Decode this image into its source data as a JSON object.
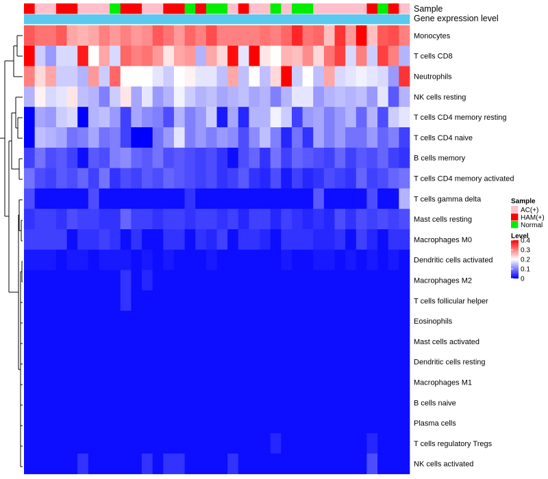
{
  "chart_data": {
    "type": "heatmap",
    "annotation_labels": [
      "Sample",
      "Gene expression level"
    ],
    "gene_expression_color": "#5bc8f0",
    "sample_groups": [
      {
        "name": "AC(+)",
        "color": "#ffc0cb"
      },
      {
        "name": "HAM(+)",
        "color": "#ff0000"
      },
      {
        "name": "Normal",
        "color": "#00ee00"
      }
    ],
    "sample_legend_title": "Sample",
    "level_legend_title": "Level",
    "level_ticks": [
      "0.4",
      "0.3",
      "0.2",
      "0.1",
      "0"
    ],
    "level_tick_values": [
      0.4,
      0.3,
      0.2,
      0.1,
      0
    ],
    "color_scale": {
      "low": "#0000ff",
      "mid": "#ffffff",
      "high": "#ff0000",
      "min": 0,
      "mid_value": 0.2,
      "max": 0.4
    },
    "sample_annotation": [
      "HAM(+)",
      "AC(+)",
      "AC(+)",
      "HAM(+)",
      "HAM(+)",
      "AC(+)",
      "AC(+)",
      "AC(+)",
      "Normal",
      "HAM(+)",
      "HAM(+)",
      "AC(+)",
      "AC(+)",
      "HAM(+)",
      "HAM(+)",
      "Normal",
      "HAM(+)",
      "Normal",
      "Normal",
      "AC(+)",
      "HAM(+)",
      "AC(+)",
      "AC(+)",
      "Normal",
      "AC(+)",
      "Normal",
      "Normal",
      "AC(+)",
      "AC(+)",
      "AC(+)",
      "AC(+)",
      "AC(+)",
      "HAM(+)",
      "Normal",
      "HAM(+)",
      "AC(+)"
    ],
    "rows": [
      "Monocytes",
      "T cells CD8",
      "Neutrophils",
      "NK cells resting",
      "T cells CD4 memory resting",
      "T cells CD4 naive",
      "B cells memory",
      "T cells CD4 memory activated",
      "T cells gamma delta",
      "Mast cells resting",
      "Macrophages M0",
      "Dendritic cells activated",
      "Macrophages M2",
      "T cells follicular helper",
      "Eosinophils",
      "Mast cells activated",
      "Dendritic cells resting",
      "Macrophages M1",
      "B cells naive",
      "Plasma cells",
      "T cells regulatory  Tregs",
      "NK cells activated"
    ],
    "values": [
      [
        0.33,
        0.31,
        0.31,
        0.33,
        0.27,
        0.26,
        0.27,
        0.3,
        0.28,
        0.3,
        0.28,
        0.29,
        0.33,
        0.31,
        0.28,
        0.32,
        0.3,
        0.34,
        0.3,
        0.3,
        0.3,
        0.3,
        0.31,
        0.3,
        0.32,
        0.37,
        0.31,
        0.32,
        0.25,
        0.36,
        0.28,
        0.4,
        0.25,
        0.33,
        0.34,
        0.3
      ],
      [
        0.4,
        0.16,
        0.12,
        0.17,
        0.17,
        0.38,
        0.2,
        0.27,
        0.17,
        0.32,
        0.3,
        0.31,
        0.28,
        0.22,
        0.27,
        0.28,
        0.14,
        0.27,
        0.23,
        0.39,
        0.18,
        0.4,
        0.22,
        0.2,
        0.26,
        0.25,
        0.29,
        0.23,
        0.31,
        0.35,
        0.17,
        0.3,
        0.16,
        0.35,
        0.3,
        0.14
      ],
      [
        0.3,
        0.23,
        0.27,
        0.16,
        0.16,
        0.14,
        0.28,
        0.16,
        0.32,
        0.2,
        0.2,
        0.2,
        0.18,
        0.16,
        0.2,
        0.21,
        0.18,
        0.18,
        0.15,
        0.27,
        0.15,
        0.2,
        0.15,
        0.23,
        0.4,
        0.16,
        0.2,
        0.15,
        0.27,
        0.17,
        0.18,
        0.19,
        0.18,
        0.17,
        0.12,
        0.36
      ],
      [
        0.14,
        0.21,
        0.17,
        0.18,
        0.22,
        0.15,
        0.14,
        0.1,
        0.16,
        0.22,
        0.13,
        0.18,
        0.12,
        0.14,
        0.19,
        0.16,
        0.14,
        0.15,
        0.13,
        0.14,
        0.15,
        0.13,
        0.14,
        0.1,
        0.14,
        0.18,
        0.18,
        0.12,
        0.14,
        0.15,
        0.14,
        0.15,
        0.12,
        0.18,
        0.07,
        0.14
      ],
      [
        0.0,
        0.13,
        0.12,
        0.16,
        0.17,
        0.0,
        0.14,
        0.15,
        0.12,
        0.05,
        0.13,
        0.11,
        0.1,
        0.06,
        0.14,
        0.1,
        0.12,
        0.16,
        0.02,
        0.13,
        0.03,
        0.14,
        0.14,
        0.19,
        0.16,
        0.05,
        0.12,
        0.13,
        0.1,
        0.12,
        0.14,
        0.08,
        0.14,
        0.06,
        0.16,
        0.18
      ],
      [
        0.0,
        0.15,
        0.14,
        0.13,
        0.09,
        0.1,
        0.13,
        0.09,
        0.1,
        0.05,
        0.0,
        0.0,
        0.09,
        0.12,
        0.18,
        0.1,
        0.12,
        0.1,
        0.12,
        0.11,
        0.06,
        0.11,
        0.15,
        0.1,
        0.03,
        0.09,
        0.04,
        0.13,
        0.1,
        0.12,
        0.09,
        0.09,
        0.12,
        0.08,
        0.1,
        0.05
      ],
      [
        0.05,
        0.09,
        0.06,
        0.07,
        0.05,
        0.01,
        0.07,
        0.06,
        0.1,
        0.11,
        0.08,
        0.07,
        0.09,
        0.06,
        0.07,
        0.06,
        0.05,
        0.06,
        0.04,
        0.01,
        0.06,
        0.08,
        0.04,
        0.09,
        0.05,
        0.08,
        0.07,
        0.06,
        0.05,
        0.08,
        0.05,
        0.07,
        0.06,
        0.08,
        0.05,
        0.04
      ],
      [
        0.09,
        0.06,
        0.05,
        0.07,
        0.06,
        0.08,
        0.05,
        0.09,
        0.04,
        0.06,
        0.05,
        0.07,
        0.06,
        0.08,
        0.07,
        0.06,
        0.05,
        0.06,
        0.04,
        0.05,
        0.07,
        0.04,
        0.03,
        0.06,
        0.02,
        0.05,
        0.03,
        0.04,
        0.06,
        0.05,
        0.04,
        0.08,
        0.05,
        0.06,
        0.08,
        0.09
      ],
      [
        0.06,
        0.01,
        0.01,
        0.01,
        0.01,
        0.01,
        0.06,
        0.01,
        0.01,
        0.01,
        0.01,
        0.01,
        0.01,
        0.01,
        0.01,
        0.04,
        0.01,
        0.01,
        0.01,
        0.01,
        0.01,
        0.01,
        0.01,
        0.01,
        0.01,
        0.01,
        0.01,
        0.07,
        0.01,
        0.01,
        0.01,
        0.01,
        0.06,
        0.01,
        0.01,
        0.14
      ],
      [
        0.04,
        0.05,
        0.05,
        0.04,
        0.06,
        0.05,
        0.05,
        0.04,
        0.04,
        0.08,
        0.05,
        0.05,
        0.04,
        0.05,
        0.05,
        0.04,
        0.05,
        0.05,
        0.04,
        0.05,
        0.03,
        0.05,
        0.05,
        0.03,
        0.05,
        0.04,
        0.03,
        0.04,
        0.03,
        0.06,
        0.04,
        0.06,
        0.05,
        0.06,
        0.05,
        0.06
      ],
      [
        0.05,
        0.05,
        0.05,
        0.05,
        0.01,
        0.04,
        0.04,
        0.05,
        0.04,
        0.01,
        0.04,
        0.01,
        0.01,
        0.04,
        0.04,
        0.01,
        0.04,
        0.03,
        0.05,
        0.01,
        0.04,
        0.04,
        0.03,
        0.01,
        0.04,
        0.04,
        0.04,
        0.03,
        0.03,
        0.04,
        0.01,
        0.05,
        0.03,
        0.01,
        0.04,
        0.04
      ],
      [
        0.02,
        0.02,
        0.02,
        0.01,
        0.02,
        0.02,
        0.01,
        0.02,
        0.02,
        0.02,
        0.01,
        0.02,
        0.01,
        0.02,
        0.01,
        0.01,
        0.01,
        0.02,
        0.01,
        0.01,
        0.01,
        0.01,
        0.01,
        0.01,
        0.02,
        0.01,
        0.01,
        0.02,
        0.02,
        0.01,
        0.02,
        0.01,
        0.02,
        0.01,
        0.02,
        0.01
      ],
      [
        0.01,
        0.01,
        0.01,
        0.01,
        0.01,
        0.01,
        0.01,
        0.01,
        0.01,
        0.04,
        0.01,
        0.03,
        0.01,
        0.01,
        0.01,
        0.01,
        0.01,
        0.01,
        0.01,
        0.01,
        0.01,
        0.01,
        0.01,
        0.01,
        0.01,
        0.01,
        0.01,
        0.01,
        0.01,
        0.01,
        0.01,
        0.01,
        0.01,
        0.01,
        0.01,
        0.01
      ],
      [
        0.01,
        0.01,
        0.01,
        0.01,
        0.01,
        0.01,
        0.01,
        0.01,
        0.01,
        0.04,
        0.01,
        0.01,
        0.01,
        0.01,
        0.01,
        0.01,
        0.01,
        0.01,
        0.01,
        0.01,
        0.01,
        0.01,
        0.01,
        0.01,
        0.01,
        0.01,
        0.01,
        0.01,
        0.01,
        0.01,
        0.01,
        0.01,
        0.01,
        0.01,
        0.01,
        0.01
      ],
      [
        0.01,
        0.01,
        0.01,
        0.01,
        0.01,
        0.01,
        0.01,
        0.01,
        0.01,
        0.01,
        0.01,
        0.01,
        0.01,
        0.01,
        0.01,
        0.01,
        0.01,
        0.01,
        0.01,
        0.01,
        0.01,
        0.01,
        0.01,
        0.01,
        0.01,
        0.01,
        0.01,
        0.01,
        0.01,
        0.01,
        0.01,
        0.01,
        0.01,
        0.01,
        0.01,
        0.01
      ],
      [
        0.01,
        0.01,
        0.01,
        0.01,
        0.01,
        0.01,
        0.01,
        0.01,
        0.01,
        0.01,
        0.01,
        0.01,
        0.01,
        0.01,
        0.01,
        0.01,
        0.01,
        0.01,
        0.01,
        0.01,
        0.01,
        0.01,
        0.01,
        0.01,
        0.01,
        0.01,
        0.01,
        0.01,
        0.01,
        0.01,
        0.01,
        0.01,
        0.01,
        0.01,
        0.01,
        0.01
      ],
      [
        0.01,
        0.01,
        0.01,
        0.01,
        0.01,
        0.01,
        0.01,
        0.01,
        0.01,
        0.01,
        0.01,
        0.01,
        0.01,
        0.01,
        0.01,
        0.01,
        0.01,
        0.01,
        0.01,
        0.01,
        0.01,
        0.01,
        0.01,
        0.01,
        0.01,
        0.01,
        0.01,
        0.01,
        0.01,
        0.01,
        0.01,
        0.01,
        0.01,
        0.01,
        0.01,
        0.01
      ],
      [
        0.01,
        0.01,
        0.01,
        0.01,
        0.01,
        0.01,
        0.01,
        0.01,
        0.01,
        0.01,
        0.01,
        0.01,
        0.01,
        0.01,
        0.01,
        0.01,
        0.01,
        0.01,
        0.01,
        0.01,
        0.01,
        0.01,
        0.01,
        0.01,
        0.01,
        0.01,
        0.01,
        0.01,
        0.01,
        0.01,
        0.01,
        0.01,
        0.01,
        0.01,
        0.01,
        0.01
      ],
      [
        0.01,
        0.01,
        0.01,
        0.01,
        0.01,
        0.01,
        0.01,
        0.01,
        0.01,
        0.01,
        0.01,
        0.01,
        0.01,
        0.01,
        0.01,
        0.01,
        0.01,
        0.01,
        0.01,
        0.01,
        0.01,
        0.01,
        0.01,
        0.01,
        0.01,
        0.01,
        0.01,
        0.01,
        0.01,
        0.01,
        0.01,
        0.01,
        0.01,
        0.01,
        0.01,
        0.01
      ],
      [
        0.01,
        0.01,
        0.01,
        0.01,
        0.01,
        0.01,
        0.01,
        0.01,
        0.01,
        0.01,
        0.01,
        0.01,
        0.01,
        0.01,
        0.01,
        0.01,
        0.01,
        0.01,
        0.01,
        0.01,
        0.01,
        0.01,
        0.01,
        0.01,
        0.01,
        0.01,
        0.01,
        0.01,
        0.01,
        0.01,
        0.01,
        0.01,
        0.01,
        0.01,
        0.01,
        0.01
      ],
      [
        0.01,
        0.01,
        0.01,
        0.01,
        0.01,
        0.01,
        0.01,
        0.01,
        0.01,
        0.01,
        0.01,
        0.01,
        0.01,
        0.01,
        0.01,
        0.01,
        0.01,
        0.01,
        0.01,
        0.01,
        0.01,
        0.01,
        0.01,
        0.03,
        0.01,
        0.01,
        0.01,
        0.01,
        0.01,
        0.01,
        0.01,
        0.01,
        0.03,
        0.01,
        0.01,
        0.01
      ],
      [
        0.01,
        0.01,
        0.01,
        0.01,
        0.01,
        0.04,
        0.01,
        0.01,
        0.01,
        0.01,
        0.01,
        0.04,
        0.01,
        0.04,
        0.04,
        0.01,
        0.01,
        0.01,
        0.01,
        0.04,
        0.01,
        0.01,
        0.01,
        0.01,
        0.01,
        0.01,
        0.01,
        0.01,
        0.01,
        0.01,
        0.01,
        0.01,
        0.06,
        0.01,
        0.01,
        0.01
      ]
    ]
  }
}
